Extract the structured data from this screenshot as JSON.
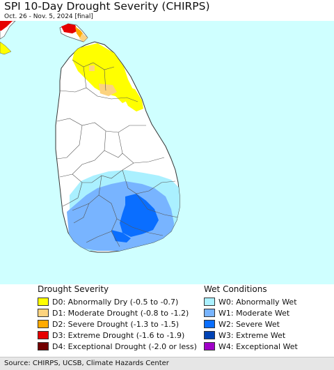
{
  "map": {
    "title": "SPI 10-Day Drought Severity (CHIRPS)",
    "subtitle": "Oct. 26 - Nov. 5, 2024 [final]",
    "ocean_color": "#cfffff",
    "land_color": "#ffffff"
  },
  "legend": {
    "drought": {
      "title": "Drought Severity",
      "items": [
        {
          "label": "D0: Abnormally Dry (-0.5 to -0.7)",
          "color": "#ffff00"
        },
        {
          "label": "D1: Moderate Drought (-0.8 to -1.2)",
          "color": "#fcd37f"
        },
        {
          "label": "D2: Severe Drought (-1.3 to -1.5)",
          "color": "#ffaa00"
        },
        {
          "label": "D3: Extreme Drought (-1.6 to -1.9)",
          "color": "#e60000"
        },
        {
          "label": "D4: Exceptional Drought (-2.0 or less)",
          "color": "#730000"
        }
      ]
    },
    "wet": {
      "title": "Wet Conditions",
      "items": [
        {
          "label": "W0: Abnormally Wet",
          "color": "#aaf0ff"
        },
        {
          "label": "W1: Moderate Wet",
          "color": "#78b4ff"
        },
        {
          "label": "W2: Severe Wet",
          "color": "#0a6eff"
        },
        {
          "label": "W3: Extreme Wet",
          "color": "#0042b4"
        },
        {
          "label": "W4: Exceptional Wet",
          "color": "#a000c8"
        }
      ]
    }
  },
  "footer": {
    "source": "Source: CHIRPS, UCSB, Climate Hazards Center"
  }
}
